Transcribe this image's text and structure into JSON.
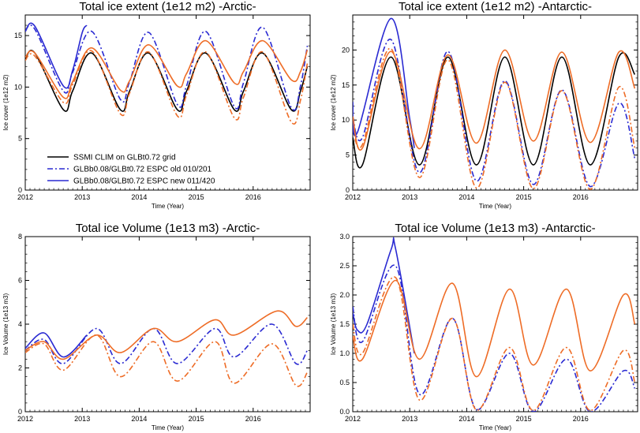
{
  "chart_data": [
    {
      "type": "line",
      "title": "Total ice extent (1e12 m2)   -Arctic-",
      "xlabel": "Time (Year)",
      "ylabel": "Ice cover (1e12 m2)",
      "xlim": [
        2012,
        2017
      ],
      "ylim": [
        0,
        17
      ],
      "xticks": [
        "2012",
        "2013",
        "2014",
        "2015",
        "2016"
      ],
      "yticks": [
        "0",
        "5",
        "10",
        "15"
      ],
      "legend": {
        "placement": "lower-left",
        "entries": [
          "SSMI CLIM on GLBt0.72 grid",
          "GLBb0.08/GLBt0.72 ESPC old 010/201",
          "GLBb0.08/GLBt0.72 ESPC new 011/420"
        ]
      },
      "series": [
        {
          "name": "SSMI CLIM on GLBt0.72 grid",
          "color": "#000000",
          "style": "solid",
          "x": [
            2012.0,
            2012.17,
            2012.67,
            2012.83,
            2013.17,
            2013.67,
            2013.83,
            2014.17,
            2014.67,
            2014.83,
            2015.17,
            2015.67,
            2015.83,
            2016.17,
            2016.67,
            2016.83,
            2016.95
          ],
          "y": [
            12.7,
            13.3,
            7.8,
            9.6,
            13.3,
            7.8,
            9.6,
            13.3,
            7.8,
            9.6,
            13.3,
            7.8,
            9.6,
            13.3,
            7.8,
            9.6,
            12.0
          ]
        },
        {
          "name": "GLBb0.08/GLBt0.72 ESPC old 010/201",
          "color": "#2a2ad2",
          "style": "dashdot",
          "x": [
            2012.0,
            2012.17,
            2012.67,
            2012.83,
            2013.17,
            2013.67,
            2013.83,
            2014.17,
            2014.67,
            2014.83,
            2015.17,
            2015.67,
            2015.83,
            2016.17,
            2016.67,
            2016.83,
            2016.95
          ],
          "y": [
            15.5,
            15.6,
            9.6,
            11.4,
            15.4,
            8.8,
            10.5,
            15.3,
            8.3,
            10.1,
            15.4,
            8.1,
            10.4,
            15.8,
            8.0,
            10.1,
            14.0
          ]
        },
        {
          "name": "",
          "color": "#ee6c26",
          "style": "dashdot",
          "x": [
            2012.0,
            2012.17,
            2012.67,
            2012.83,
            2013.17,
            2013.67,
            2013.83,
            2014.17,
            2014.67,
            2014.83,
            2015.17,
            2015.67,
            2015.83,
            2016.17,
            2016.67,
            2016.83,
            2016.95
          ],
          "y": [
            12.6,
            13.0,
            8.5,
            10.2,
            13.5,
            7.4,
            9.4,
            13.4,
            7.2,
            9.2,
            13.4,
            7.0,
            9.0,
            13.4,
            6.6,
            8.7,
            12.3
          ]
        },
        {
          "name": "GLBb0.08/GLBt0.72 ESPC new 011/420",
          "color": "#2a2ad2",
          "style": "solid",
          "x": [
            2012.0,
            2012.17,
            2012.67,
            2012.83,
            2013.0,
            2013.08
          ],
          "y": [
            15.4,
            15.9,
            10.1,
            11.6,
            15.3,
            16.0
          ]
        },
        {
          "name": "",
          "color": "#ee6c26",
          "style": "solid",
          "x": [
            2012.0,
            2012.17,
            2012.67,
            2012.83,
            2013.17,
            2013.67,
            2013.83,
            2014.17,
            2014.67,
            2014.83,
            2015.17,
            2015.67,
            2015.83,
            2016.17,
            2016.67,
            2016.83,
            2016.95
          ],
          "y": [
            12.9,
            13.3,
            9.0,
            10.5,
            13.8,
            9.7,
            10.6,
            14.1,
            10.1,
            11.3,
            14.5,
            10.4,
            11.5,
            14.5,
            10.7,
            11.5,
            13.6
          ]
        }
      ]
    },
    {
      "type": "line",
      "title": "Total ice extent (1e12 m2)   -Antarctic-",
      "xlabel": "Time (Year)",
      "ylabel": "Ice cover (1e12 m2)",
      "xlim": [
        2012,
        2017
      ],
      "ylim": [
        0,
        25
      ],
      "xticks": [
        "2012",
        "2013",
        "2014",
        "2015",
        "2016"
      ],
      "yticks": [
        "0",
        "5",
        "10",
        "15",
        "20"
      ],
      "series": [
        {
          "name": "",
          "color": "#000000",
          "style": "solid",
          "x": [
            2012.0,
            2012.17,
            2012.67,
            2013.17,
            2013.67,
            2014.17,
            2014.67,
            2015.17,
            2015.67,
            2016.17,
            2016.67,
            2016.95
          ],
          "y": [
            7.5,
            3.6,
            19.0,
            3.6,
            19.0,
            3.6,
            19.0,
            3.6,
            19.0,
            3.6,
            19.0,
            16.5
          ]
        },
        {
          "name": "",
          "color": "#2a2ad2",
          "style": "dashdot",
          "x": [
            2012.0,
            2012.17,
            2012.67,
            2013.17,
            2013.67,
            2014.17,
            2014.67,
            2015.17,
            2015.67,
            2016.17,
            2016.67,
            2016.95
          ],
          "y": [
            10.5,
            7.5,
            21.5,
            2.5,
            19.8,
            1.3,
            15.6,
            0.8,
            14.3,
            0.5,
            12.4,
            4.5
          ]
        },
        {
          "name": "",
          "color": "#ee6c26",
          "style": "dashdot",
          "x": [
            2012.0,
            2012.17,
            2012.67,
            2013.17,
            2013.67,
            2014.17,
            2014.67,
            2015.17,
            2015.67,
            2016.17,
            2016.67,
            2016.95
          ],
          "y": [
            9.0,
            6.5,
            20.2,
            1.8,
            18.6,
            0.3,
            15.4,
            0.2,
            14.2,
            0.1,
            14.7,
            6.0
          ]
        },
        {
          "name": "",
          "color": "#2a2ad2",
          "style": "solid",
          "x": [
            2012.0,
            2012.08,
            2012.67,
            2013.0,
            2013.08
          ],
          "y": [
            12.6,
            8.2,
            24.5,
            10.2,
            6.0
          ]
        },
        {
          "name": "",
          "color": "#ee6c26",
          "style": "solid",
          "x": [
            2012.0,
            2012.17,
            2012.67,
            2013.17,
            2013.67,
            2014.17,
            2014.67,
            2015.17,
            2015.67,
            2016.17,
            2016.67,
            2016.95
          ],
          "y": [
            10.5,
            6.0,
            19.8,
            5.9,
            19.3,
            6.7,
            20.0,
            7.0,
            19.7,
            6.8,
            19.7,
            14.5
          ]
        }
      ]
    },
    {
      "type": "line",
      "title": "Total ice Volume (1e13 m3)   -Arctic-",
      "xlabel": "Time (Year)",
      "ylabel": "Ice Volume (1e13 m3)",
      "xlim": [
        2012,
        2017
      ],
      "ylim": [
        0,
        8
      ],
      "xticks": [
        "2012",
        "2013",
        "2014",
        "2015",
        "2016"
      ],
      "yticks": [
        "0",
        "2",
        "4",
        "6",
        "8"
      ],
      "series": [
        {
          "name": "",
          "color": "#2a2ad2",
          "style": "dashdot",
          "x": [
            2012.0,
            2012.33,
            2012.67,
            2013.25,
            2013.67,
            2014.25,
            2014.67,
            2015.33,
            2015.67,
            2016.33,
            2016.75,
            2016.95
          ],
          "y": [
            2.8,
            3.3,
            2.2,
            3.8,
            2.2,
            3.8,
            2.2,
            3.8,
            2.5,
            4.0,
            2.2,
            2.8
          ]
        },
        {
          "name": "",
          "color": "#ee6c26",
          "style": "dashdot",
          "x": [
            2012.0,
            2012.33,
            2012.67,
            2013.25,
            2013.67,
            2014.25,
            2014.67,
            2015.33,
            2015.67,
            2016.33,
            2016.75,
            2016.95
          ],
          "y": [
            2.7,
            3.1,
            1.9,
            3.5,
            1.6,
            3.2,
            1.4,
            3.2,
            1.3,
            3.1,
            1.2,
            1.8
          ]
        },
        {
          "name": "",
          "color": "#2a2ad2",
          "style": "solid",
          "x": [
            2012.0,
            2012.33,
            2012.67,
            2013.08
          ],
          "y": [
            2.9,
            3.6,
            2.5,
            3.5
          ]
        },
        {
          "name": "",
          "color": "#ee6c26",
          "style": "solid",
          "x": [
            2012.0,
            2012.33,
            2012.67,
            2013.25,
            2013.67,
            2014.25,
            2014.67,
            2015.33,
            2015.67,
            2016.42,
            2016.75,
            2016.95
          ],
          "y": [
            2.8,
            3.2,
            2.4,
            3.5,
            2.7,
            3.8,
            3.2,
            4.2,
            3.5,
            4.6,
            3.9,
            4.3
          ]
        }
      ]
    },
    {
      "type": "line",
      "title": "Total ice Volume (1e13 m3)   -Antarctic-",
      "xlabel": "Time (Year)",
      "ylabel": "Ice Volume (1e13 m3)",
      "xlim": [
        2012,
        2017
      ],
      "ylim": [
        0,
        3.0
      ],
      "xticks": [
        "2012",
        "2013",
        "2014",
        "2015",
        "2016"
      ],
      "yticks": [
        "0.0",
        "0.5",
        "1.0",
        "1.5",
        "2.0",
        "2.5",
        "3.0"
      ],
      "series": [
        {
          "name": "",
          "color": "#2a2ad2",
          "style": "dashdot",
          "x": [
            2012.0,
            2012.17,
            2012.75,
            2013.17,
            2013.75,
            2014.17,
            2014.75,
            2015.17,
            2015.75,
            2016.17,
            2016.75,
            2016.95
          ],
          "y": [
            1.8,
            1.2,
            2.5,
            0.3,
            1.6,
            0.04,
            1.0,
            0.0,
            0.9,
            0.0,
            0.7,
            0.4
          ]
        },
        {
          "name": "",
          "color": "#ee6c26",
          "style": "dashdot",
          "x": [
            2012.0,
            2012.17,
            2012.75,
            2013.17,
            2013.75,
            2014.17,
            2014.75,
            2015.17,
            2015.75,
            2016.17,
            2016.75,
            2016.95
          ],
          "y": [
            1.5,
            1.0,
            2.3,
            0.2,
            1.6,
            0.03,
            1.1,
            0.02,
            1.1,
            0.02,
            1.05,
            0.5
          ]
        },
        {
          "name": "",
          "color": "#2a2ad2",
          "style": "solid",
          "x": [
            2012.0,
            2012.08,
            2012.25,
            2012.67,
            2012.75,
            2013.08
          ],
          "y": [
            1.7,
            1.4,
            1.5,
            2.77,
            2.8,
            1.0
          ]
        },
        {
          "name": "",
          "color": "#ee6c26",
          "style": "solid",
          "x": [
            2012.0,
            2012.17,
            2012.75,
            2013.17,
            2013.75,
            2014.17,
            2014.75,
            2015.17,
            2015.75,
            2016.17,
            2016.75,
            2016.95
          ],
          "y": [
            1.3,
            0.9,
            2.25,
            0.9,
            2.2,
            0.6,
            2.1,
            0.8,
            2.1,
            0.7,
            2.0,
            1.5
          ]
        }
      ]
    }
  ]
}
